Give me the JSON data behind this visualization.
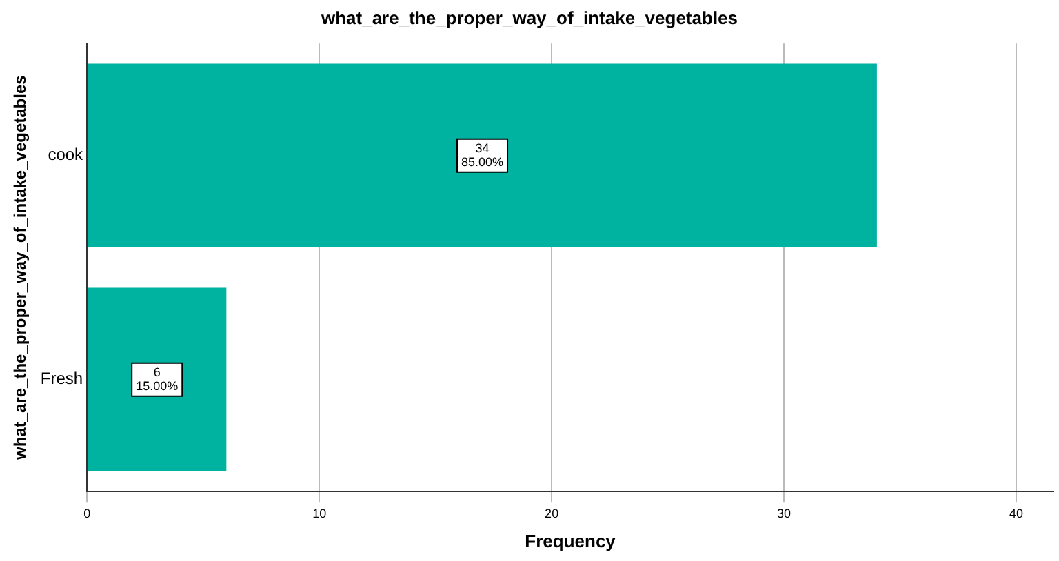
{
  "chart_data": {
    "type": "bar",
    "orientation": "horizontal",
    "title": "what_are_the_proper_way_of_intake_vegetables",
    "xlabel": "Frequency",
    "ylabel": "what_are_the_proper_way_of_intake_vegetables",
    "categories": [
      "cook",
      "Fresh"
    ],
    "values": [
      34,
      6
    ],
    "color": "#00b2a0",
    "value_labels": [
      "34\n85.00%",
      "6\n15.00%"
    ],
    "xlim": [
      0,
      41.6
    ],
    "xticks": [
      0,
      10,
      20,
      30,
      40
    ],
    "grid": "x",
    "legend": false
  }
}
